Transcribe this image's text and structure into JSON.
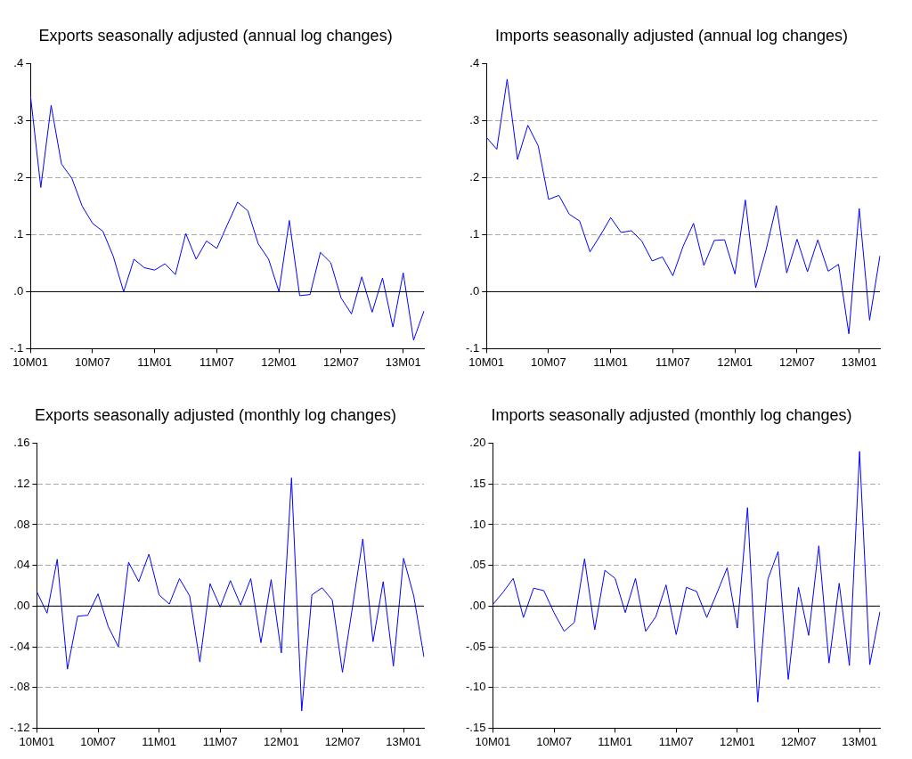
{
  "chart_data": [
    {
      "type": "line",
      "title": "Exports seasonally adjusted (annual log changes)",
      "categories": [
        "10M01",
        null,
        null,
        null,
        null,
        null,
        "10M07",
        null,
        null,
        null,
        null,
        null,
        "11M01",
        null,
        null,
        null,
        null,
        null,
        "11M07",
        null,
        null,
        null,
        null,
        null,
        "12M01",
        null,
        null,
        null,
        null,
        null,
        "12M07",
        null,
        null,
        null,
        null,
        null,
        "13M01",
        null,
        null
      ],
      "series": [
        {
          "color": "#0000ff",
          "values": [
            0.345,
            0.183,
            0.327,
            0.224,
            0.199,
            0.15,
            0.12,
            0.106,
            0.062,
            0.0,
            0.057,
            0.042,
            0.038,
            0.049,
            0.03,
            0.102,
            0.057,
            0.089,
            0.076,
            0.117,
            0.157,
            0.142,
            0.084,
            0.057,
            0.0,
            0.125,
            -0.007,
            -0.005,
            0.069,
            0.051,
            -0.011,
            -0.039,
            0.026,
            -0.036,
            0.024,
            -0.062,
            0.033,
            -0.085,
            -0.034
          ]
        }
      ],
      "ylim": [
        -0.1,
        0.4
      ],
      "yticks": [
        {
          "value": -0.1,
          "label": "-.1"
        },
        {
          "value": 0,
          "label": ".0"
        },
        {
          "value": 0.1,
          "label": ".1"
        },
        {
          "value": 0.2,
          "label": ".2"
        },
        {
          "value": 0.3,
          "label": ".3"
        },
        {
          "value": 0.4,
          "label": ".4"
        }
      ],
      "grid": "y",
      "legend": false,
      "marker": "none",
      "line_style": "solid",
      "ref_lines": [
        {
          "axis": "y",
          "value": 0,
          "color": "#000000"
        }
      ]
    },
    {
      "type": "line",
      "title": "Imports seasonally adjusted (annual log changes)",
      "categories": [
        "10M01",
        null,
        null,
        null,
        null,
        null,
        "10M07",
        null,
        null,
        null,
        null,
        null,
        "11M01",
        null,
        null,
        null,
        null,
        null,
        "11M07",
        null,
        null,
        null,
        null,
        null,
        "12M01",
        null,
        null,
        null,
        null,
        null,
        "12M07",
        null,
        null,
        null,
        null,
        null,
        "13M01",
        null,
        null
      ],
      "series": [
        {
          "color": "#0000ff",
          "values": [
            0.271,
            0.25,
            0.373,
            0.232,
            0.292,
            0.256,
            0.162,
            0.169,
            0.136,
            0.124,
            0.07,
            0.099,
            0.13,
            0.104,
            0.107,
            0.089,
            0.054,
            0.061,
            0.028,
            0.08,
            0.12,
            0.046,
            0.09,
            0.091,
            0.031,
            0.161,
            0.007,
            0.073,
            0.151,
            0.033,
            0.092,
            0.035,
            0.091,
            0.036,
            0.048,
            -0.074,
            0.146,
            -0.05,
            0.063
          ]
        }
      ],
      "ylim": [
        -0.1,
        0.4
      ],
      "yticks": [
        {
          "value": -0.1,
          "label": "-.1"
        },
        {
          "value": 0,
          "label": ".0"
        },
        {
          "value": 0.1,
          "label": ".1"
        },
        {
          "value": 0.2,
          "label": ".2"
        },
        {
          "value": 0.3,
          "label": ".3"
        },
        {
          "value": 0.4,
          "label": ".4"
        }
      ],
      "grid": "y",
      "legend": false,
      "marker": "none",
      "line_style": "solid",
      "ref_lines": [
        {
          "axis": "y",
          "value": 0,
          "color": "#000000"
        }
      ]
    },
    {
      "type": "line",
      "title": "Exports seasonally adjusted (monthly log changes)",
      "categories": [
        "10M01",
        null,
        null,
        null,
        null,
        null,
        "10M07",
        null,
        null,
        null,
        null,
        null,
        "11M01",
        null,
        null,
        null,
        null,
        null,
        "11M07",
        null,
        null,
        null,
        null,
        null,
        "12M01",
        null,
        null,
        null,
        null,
        null,
        "12M07",
        null,
        null,
        null,
        null,
        null,
        "13M01",
        null,
        null
      ],
      "series": [
        {
          "color": "#0000ff",
          "values": [
            0.014,
            -0.007,
            0.046,
            -0.062,
            -0.01,
            -0.009,
            0.012,
            -0.02,
            -0.04,
            0.043,
            0.024,
            0.051,
            0.011,
            0.002,
            0.027,
            0.01,
            -0.055,
            0.022,
            -0.001,
            0.025,
            0.001,
            0.027,
            -0.036,
            0.026,
            -0.046,
            0.126,
            -0.103,
            0.011,
            0.018,
            0.006,
            -0.065,
            0.0,
            0.066,
            -0.035,
            0.024,
            -0.059,
            0.047,
            0.01,
            -0.05
          ]
        }
      ],
      "ylim": [
        -0.12,
        0.16
      ],
      "yticks": [
        {
          "value": -0.12,
          "label": "-.12"
        },
        {
          "value": -0.08,
          "label": "-.08"
        },
        {
          "value": -0.04,
          "label": "-.04"
        },
        {
          "value": 0,
          "label": ".00"
        },
        {
          "value": 0.04,
          "label": ".04"
        },
        {
          "value": 0.08,
          "label": ".08"
        },
        {
          "value": 0.12,
          "label": ".12"
        },
        {
          "value": 0.16,
          "label": ".16"
        }
      ],
      "grid": "y",
      "legend": false,
      "marker": "none",
      "line_style": "solid",
      "ref_lines": [
        {
          "axis": "y",
          "value": 0,
          "color": "#000000"
        }
      ]
    },
    {
      "type": "line",
      "title": "Imports seasonally adjusted (monthly log changes)",
      "categories": [
        "10M01",
        null,
        null,
        null,
        null,
        null,
        "10M07",
        null,
        null,
        null,
        null,
        null,
        "11M01",
        null,
        null,
        null,
        null,
        null,
        "11M07",
        null,
        null,
        null,
        null,
        null,
        "12M01",
        null,
        null,
        null,
        null,
        null,
        "12M07",
        null,
        null,
        null,
        null,
        null,
        "13M01",
        null,
        null
      ],
      "series": [
        {
          "color": "#0000ff",
          "values": [
            0.002,
            0.017,
            0.034,
            -0.014,
            0.022,
            0.019,
            -0.008,
            -0.031,
            -0.02,
            0.058,
            -0.029,
            0.044,
            0.034,
            -0.008,
            0.034,
            -0.031,
            -0.013,
            0.026,
            -0.035,
            0.023,
            0.018,
            -0.014,
            0.016,
            0.047,
            -0.027,
            0.121,
            -0.118,
            0.033,
            0.067,
            -0.09,
            0.023,
            -0.036,
            0.074,
            -0.07,
            0.028,
            -0.073,
            0.19,
            -0.072,
            -0.007
          ]
        }
      ],
      "ylim": [
        -0.15,
        0.2
      ],
      "yticks": [
        {
          "value": -0.15,
          "label": "-.15"
        },
        {
          "value": -0.1,
          "label": "-.10"
        },
        {
          "value": -0.05,
          "label": "-.05"
        },
        {
          "value": 0,
          "label": ".00"
        },
        {
          "value": 0.05,
          "label": ".05"
        },
        {
          "value": 0.1,
          "label": ".10"
        },
        {
          "value": 0.15,
          "label": ".15"
        },
        {
          "value": 0.2,
          "label": ".20"
        }
      ],
      "grid": "y",
      "legend": false,
      "marker": "none",
      "line_style": "solid",
      "ref_lines": [
        {
          "axis": "y",
          "value": 0,
          "color": "#000000"
        }
      ]
    }
  ]
}
